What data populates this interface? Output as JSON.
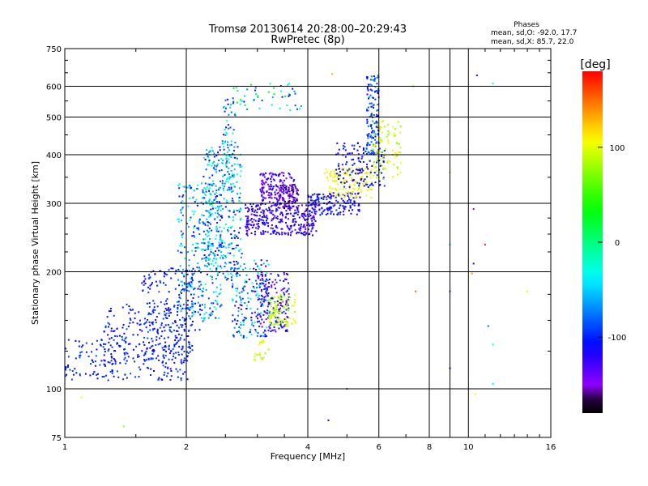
{
  "chart_data": {
    "type": "scatter",
    "title": "Tromsø 20130614 20:28:00–20:29:43",
    "subtitle": "RwPretec (8p)",
    "xlabel": "Frequency [MHz]",
    "ylabel": "Stationary phase Virtual Height [km]",
    "xscale": "log",
    "yscale": "log",
    "xlim": [
      1,
      16
    ],
    "ylim": [
      75,
      750
    ],
    "xticks": [
      1,
      2,
      4,
      6,
      8,
      10,
      16
    ],
    "yticks": [
      75,
      100,
      200,
      300,
      400,
      500,
      600,
      750
    ],
    "grid": true,
    "stats": {
      "heading": "Phases",
      "line_o": "mean, sd,O: -92.0, 17.7",
      "line_x": "mean, sd,X:  85.7, 22.0"
    },
    "colorbar": {
      "label": "[deg]",
      "range": [
        -180,
        180
      ],
      "ticks": [
        100,
        0,
        -100
      ],
      "colormap": "rainbow"
    },
    "series": [
      {
        "clusters": [
          {
            "f": [
              1.0,
              2.05
            ],
            "h": [
              105,
              135
            ],
            "n": 220,
            "phase": [
              -115,
              -85
            ]
          },
          {
            "f": [
              1.25,
              2.1
            ],
            "h": [
              118,
              165
            ],
            "n": 180,
            "phase": [
              -120,
              -85
            ]
          },
          {
            "f": [
              1.55,
              2.2
            ],
            "h": [
              140,
              205
            ],
            "n": 160,
            "phase": [
              -120,
              -80
            ]
          },
          {
            "f": [
              1.9,
              2.45
            ],
            "h": [
              150,
              340
            ],
            "n": 320,
            "phase": [
              -110,
              -20
            ]
          },
          {
            "f": [
              2.2,
              2.75
            ],
            "h": [
              190,
              420
            ],
            "n": 300,
            "phase": [
              -115,
              -15
            ]
          },
          {
            "f": [
              2.45,
              2.65
            ],
            "h": [
              320,
              560
            ],
            "n": 80,
            "phase": [
              -110,
              -20
            ]
          },
          {
            "f": [
              2.6,
              3.2
            ],
            "h": [
              135,
              215
            ],
            "n": 180,
            "phase": [
              -130,
              -20
            ]
          },
          {
            "f": [
              2.8,
              4.2
            ],
            "h": [
              248,
              300
            ],
            "n": 320,
            "phase": [
              -140,
              -105
            ]
          },
          {
            "f": [
              3.05,
              3.7
            ],
            "h": [
              300,
              360
            ],
            "n": 160,
            "phase": [
              -150,
              -110
            ]
          },
          {
            "f": [
              3.4,
              3.8
            ],
            "h": [
              290,
              335
            ],
            "n": 80,
            "phase": [
              -170,
              -140
            ]
          },
          {
            "f": [
              3.0,
              3.6
            ],
            "h": [
              140,
              200
            ],
            "n": 170,
            "phase": [
              -150,
              -90
            ]
          },
          {
            "f": [
              3.2,
              3.75
            ],
            "h": [
              145,
              175
            ],
            "n": 100,
            "phase": [
              70,
              110
            ]
          },
          {
            "f": [
              2.95,
              3.2
            ],
            "h": [
              118,
              135
            ],
            "n": 20,
            "phase": [
              75,
              105
            ]
          },
          {
            "f": [
              4.0,
              5.4
            ],
            "h": [
              280,
              320
            ],
            "n": 160,
            "phase": [
              -130,
              -90
            ]
          },
          {
            "f": [
              4.4,
              5.8
            ],
            "h": [
              310,
              370
            ],
            "n": 140,
            "phase": [
              90,
              120
            ]
          },
          {
            "f": [
              4.7,
              6.2
            ],
            "h": [
              330,
              430
            ],
            "n": 140,
            "phase": [
              -125,
              -90
            ]
          },
          {
            "f": [
              5.6,
              6.0
            ],
            "h": [
              400,
              640
            ],
            "n": 130,
            "phase": [
              -120,
              -60
            ]
          },
          {
            "f": [
              5.8,
              6.8
            ],
            "h": [
              345,
              490
            ],
            "n": 90,
            "phase": [
              70,
              115
            ]
          },
          {
            "f": [
              2.6,
              3.9
            ],
            "h": [
              520,
              610
            ],
            "n": 50,
            "phase": [
              -120,
              40
            ]
          }
        ],
        "points": [
          {
            "f": 10.5,
            "h": 640,
            "phase": -120
          },
          {
            "f": 11.5,
            "h": 610,
            "phase": -20
          },
          {
            "f": 10.3,
            "h": 290,
            "phase": -150
          },
          {
            "f": 10.3,
            "h": 210,
            "phase": -120
          },
          {
            "f": 11.0,
            "h": 235,
            "phase": 170
          },
          {
            "f": 9.0,
            "h": 235,
            "phase": -50
          },
          {
            "f": 9.0,
            "h": 360,
            "phase": 70
          },
          {
            "f": 9.0,
            "h": 178,
            "phase": -150
          },
          {
            "f": 10.2,
            "h": 198,
            "phase": 140
          },
          {
            "f": 7.4,
            "h": 178,
            "phase": 150
          },
          {
            "f": 11.2,
            "h": 145,
            "phase": -80
          },
          {
            "f": 11.5,
            "h": 130,
            "phase": -30
          },
          {
            "f": 9.0,
            "h": 113,
            "phase": -115
          },
          {
            "f": 11.5,
            "h": 103,
            "phase": -40
          },
          {
            "f": 10.4,
            "h": 97,
            "phase": 110
          },
          {
            "f": 14.0,
            "h": 178,
            "phase": 100
          },
          {
            "f": 7.3,
            "h": 600,
            "phase": 60
          },
          {
            "f": 4.6,
            "h": 645,
            "phase": 130
          },
          {
            "f": 5.0,
            "h": 100,
            "phase": -70
          },
          {
            "f": 4.5,
            "h": 83,
            "phase": -110
          },
          {
            "f": 1.1,
            "h": 95,
            "phase": 100
          },
          {
            "f": 1.4,
            "h": 80,
            "phase": 80
          }
        ]
      }
    ]
  }
}
